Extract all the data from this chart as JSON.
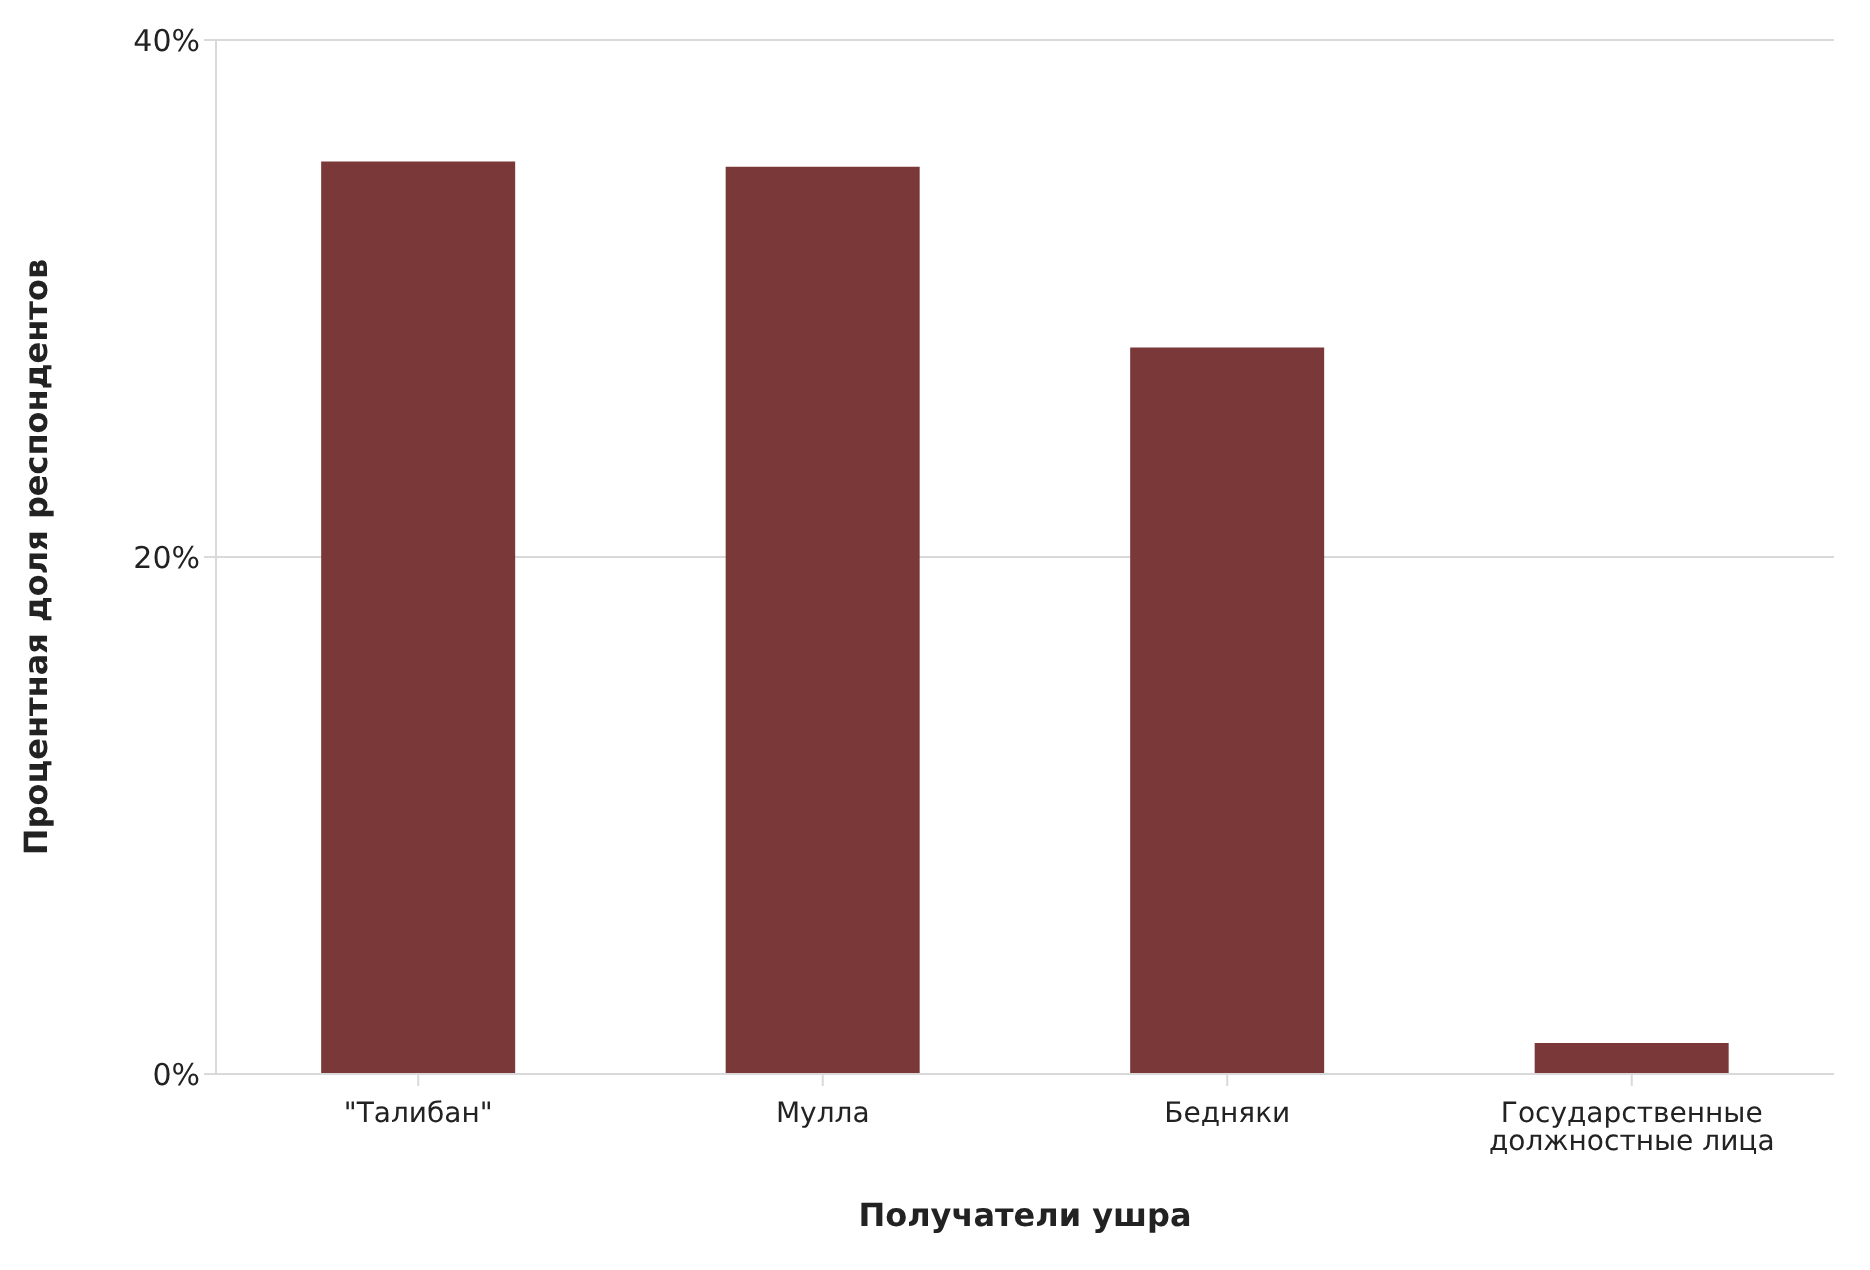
{
  "chart_data": {
    "type": "bar",
    "xlabel": "Получатели ушра",
    "ylabel": "Процентная доля респондентов",
    "categories": [
      "\"Талибан\"",
      "Мулла",
      "Бедняки",
      "Государственные должностные лица"
    ],
    "values": [
      35.3,
      35.1,
      28.1,
      1.2
    ],
    "color": "#7a3838",
    "ylim": [
      0,
      40
    ],
    "yticks": [
      {
        "value": 0,
        "label": "0%"
      },
      {
        "value": 20,
        "label": "20%"
      },
      {
        "value": 40,
        "label": "40%"
      }
    ],
    "grid": "y"
  }
}
